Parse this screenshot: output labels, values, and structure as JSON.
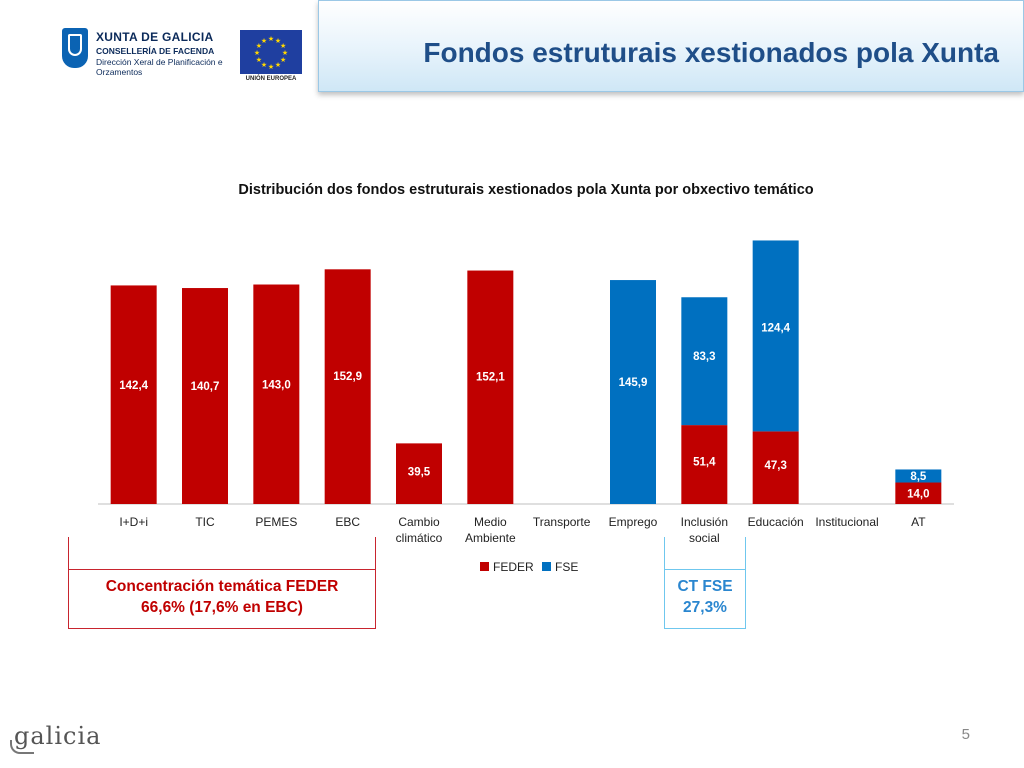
{
  "header": {
    "org_name": "XUNTA DE GALICIA",
    "department": "CONSELLERÍA DE FACENDA",
    "direction": "Dirección Xeral de Planificación e Orzamentos",
    "eu_caption": "UNIÓN EUROPEA",
    "slide_title": "Fondos estruturais xestionados pola Xunta"
  },
  "chart_data": {
    "type": "bar",
    "stacked": true,
    "title": "Distribución dos fondos estruturais xestionados pola Xunta por obxectivo temático",
    "categories": [
      [
        "I+D+i"
      ],
      [
        "TIC"
      ],
      [
        "PEMES"
      ],
      [
        "EBC"
      ],
      [
        "Cambio",
        "climático"
      ],
      [
        "Medio",
        "Ambiente"
      ],
      [
        "Transporte"
      ],
      [
        "Emprego"
      ],
      [
        "Inclusión",
        "social"
      ],
      [
        "Educación"
      ],
      [
        "Institucional"
      ],
      [
        "AT"
      ]
    ],
    "series": [
      {
        "name": "FEDER",
        "color": "#c00000",
        "values": [
          142.4,
          140.7,
          143.0,
          152.9,
          39.5,
          152.1,
          0,
          0,
          51.4,
          47.3,
          0,
          14.0
        ]
      },
      {
        "name": "FSE",
        "color": "#0070c0",
        "values": [
          0,
          0,
          0,
          0,
          0,
          0,
          0,
          145.9,
          83.3,
          124.4,
          0,
          8.5
        ]
      }
    ],
    "data_labels": {
      "FEDER": [
        "142,4",
        "140,7",
        "143,0",
        "152,9",
        "39,5",
        "152,1",
        "",
        "",
        "51,4",
        "47,3",
        "",
        "14,0"
      ],
      "FSE": [
        "",
        "",
        "",
        "",
        "",
        "",
        "",
        "145,9",
        "83,3",
        "124,4",
        "",
        "8,5"
      ]
    },
    "legend": [
      "FEDER",
      "FSE"
    ],
    "legend_position": "bottom",
    "grid": false,
    "ylim": [
      0,
      172
    ]
  },
  "annotations": {
    "feder_line1": "Concentración temática FEDER",
    "feder_line2": "66,6% (17,6% en EBC)",
    "fse_line1": "CT FSE",
    "fse_line2": "27,3%"
  },
  "footer": {
    "logo_text": "galicia",
    "page_number": "5"
  }
}
